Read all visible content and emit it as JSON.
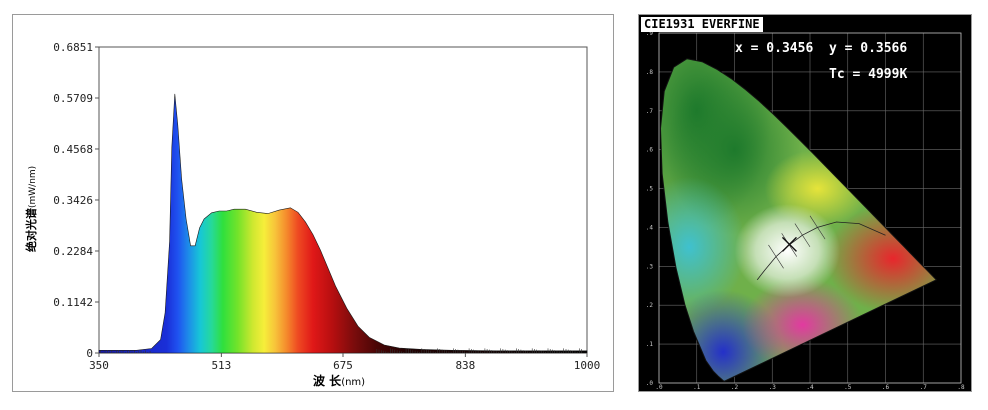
{
  "chart_data": [
    {
      "type": "area",
      "xlabel": "波 长",
      "xlabel_unit": "(nm)",
      "ylabel": "绝对光谱",
      "ylabel_unit": "(mW/nm)",
      "xlim": [
        350,
        1000
      ],
      "ylim": [
        0,
        0.6851
      ],
      "x_ticks": [
        "350",
        "513",
        "675",
        "838",
        "1000"
      ],
      "y_ticks": [
        "0",
        "0.1142",
        "0.2284",
        "0.3426",
        "0.4568",
        "0.5709",
        "0.6851"
      ],
      "fill": "visible-spectrum gradient",
      "x": [
        350,
        400,
        420,
        432,
        438,
        444,
        447,
        451,
        455,
        460,
        466,
        472,
        478,
        484,
        490,
        500,
        510,
        520,
        530,
        545,
        560,
        575,
        590,
        605,
        615,
        625,
        635,
        645,
        655,
        665,
        680,
        695,
        710,
        730,
        750,
        780,
        820,
        880,
        1000
      ],
      "values": [
        0.006,
        0.006,
        0.01,
        0.03,
        0.09,
        0.25,
        0.46,
        0.58,
        0.51,
        0.39,
        0.3,
        0.24,
        0.24,
        0.28,
        0.3,
        0.314,
        0.318,
        0.318,
        0.322,
        0.322,
        0.315,
        0.312,
        0.32,
        0.325,
        0.315,
        0.293,
        0.265,
        0.23,
        0.19,
        0.15,
        0.1,
        0.06,
        0.035,
        0.018,
        0.011,
        0.008,
        0.006,
        0.005,
        0.005
      ]
    },
    {
      "type": "scatter",
      "title": "CIE1931 EVERFINE",
      "x": [
        0.3456
      ],
      "values": [
        0.3566
      ],
      "x_text": "x = 0.3456",
      "y_text": "y = 0.3566",
      "tc_text": "Tc = 4999K",
      "xlim": [
        0,
        0.8
      ],
      "ylim": [
        0,
        0.9
      ]
    }
  ]
}
